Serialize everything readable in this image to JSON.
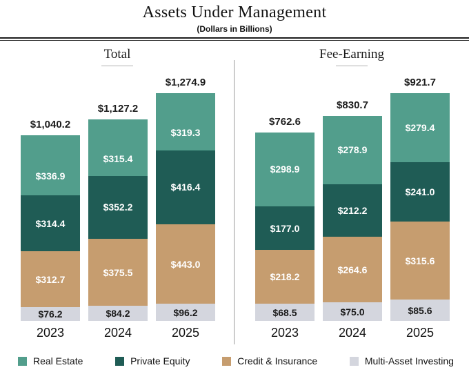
{
  "header": {
    "title": "Assets Under Management",
    "subtitle": "(Dollars in Billions)"
  },
  "colors": {
    "real_estate": "#529E8C",
    "private_equity": "#1F5C55",
    "credit_insurance": "#C69D6F",
    "multi_asset": "#D4D6DE",
    "divider": "#9A9A9A",
    "text_dark": "#1A1A1A"
  },
  "legend": {
    "position": "bottom",
    "items": [
      {
        "label": "Real Estate",
        "color": "#529E8C"
      },
      {
        "label": "Private Equity",
        "color": "#1F5C55"
      },
      {
        "label": "Credit & Insurance",
        "color": "#C69D6F"
      },
      {
        "label": "Multi-Asset Investing",
        "color": "#D4D6DE"
      }
    ]
  },
  "chart_data": [
    {
      "type": "bar",
      "stacked": true,
      "title": "Total",
      "categories": [
        "2023",
        "2024",
        "2025"
      ],
      "series": [
        {
          "name": "Real Estate",
          "values": [
            336.9,
            315.4,
            319.3
          ]
        },
        {
          "name": "Private Equity",
          "values": [
            314.4,
            352.2,
            416.4
          ]
        },
        {
          "name": "Credit & Insurance",
          "values": [
            312.7,
            375.5,
            443.0
          ]
        },
        {
          "name": "Multi-Asset Investing",
          "values": [
            76.2,
            84.2,
            96.2
          ]
        }
      ],
      "totals": [
        1040.2,
        1127.2,
        1274.9
      ],
      "totals_display": [
        "$1,040.2",
        "$1,127.2",
        "$1,274.9"
      ],
      "grid": false,
      "axes_visible": false,
      "value_labels": "inside-segments"
    },
    {
      "type": "bar",
      "stacked": true,
      "title": "Fee-Earning",
      "categories": [
        "2023",
        "2024",
        "2025"
      ],
      "series": [
        {
          "name": "Real Estate",
          "values": [
            298.9,
            278.9,
            279.4
          ]
        },
        {
          "name": "Private Equity",
          "values": [
            177.0,
            212.2,
            241.0
          ]
        },
        {
          "name": "Credit & Insurance",
          "values": [
            218.2,
            264.6,
            315.6
          ]
        },
        {
          "name": "Multi-Asset Investing",
          "values": [
            68.5,
            75.0,
            85.6
          ]
        }
      ],
      "totals": [
        762.6,
        830.7,
        921.7
      ],
      "totals_display": [
        "$762.6",
        "$830.7",
        "$921.7"
      ],
      "grid": false,
      "axes_visible": false,
      "value_labels": "inside-segments"
    }
  ]
}
